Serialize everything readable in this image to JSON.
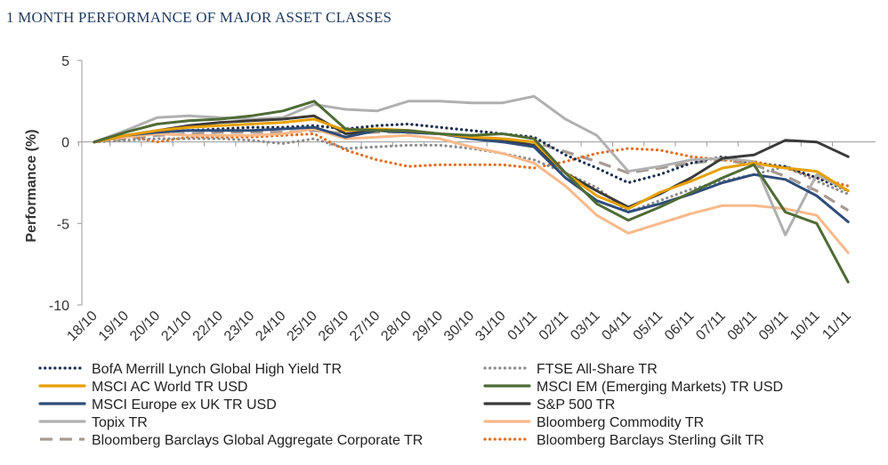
{
  "title": "1 MONTH PERFORMANCE OF MAJOR ASSET CLASSES",
  "chart_data": {
    "type": "line",
    "ylabel": "Performance (%)",
    "ylim": [
      -10,
      5
    ],
    "yticks": [
      "5",
      "0",
      "-5",
      "-10"
    ],
    "grid": false,
    "legend_position": "bottom",
    "x": [
      "18/10",
      "19/10",
      "20/10",
      "21/10",
      "22/10",
      "23/10",
      "24/10",
      "25/10",
      "26/10",
      "27/10",
      "28/10",
      "29/10",
      "30/10",
      "31/10",
      "01/11",
      "02/11",
      "03/11",
      "04/11",
      "05/11",
      "06/11",
      "07/11",
      "08/11",
      "09/11",
      "10/11",
      "11/11"
    ],
    "series": [
      {
        "name": "BofA Merrill Lynch Global High Yield TR",
        "color": "#1b2f4f",
        "style": "dotted",
        "values": [
          0,
          0.3,
          0.6,
          0.7,
          0.8,
          0.9,
          0.9,
          1.0,
          0.8,
          1.0,
          1.1,
          0.9,
          0.7,
          0.5,
          0.3,
          -0.8,
          -1.6,
          -2.5,
          -2.0,
          -1.3,
          -0.9,
          -1.3,
          -1.5,
          -2.2,
          -3.0
        ]
      },
      {
        "name": "FTSE All-Share TR",
        "color": "#8c8c8c",
        "style": "dotted",
        "values": [
          0,
          0.1,
          0.2,
          0.2,
          0.2,
          0.1,
          -0.1,
          0.2,
          -0.4,
          -0.3,
          -0.2,
          -0.2,
          -0.4,
          -0.7,
          -1.1,
          -1.9,
          -2.8,
          -4.3,
          -3.6,
          -2.9,
          -2.4,
          -2.0,
          -1.5,
          -2.4,
          -3.2
        ]
      },
      {
        "name": "MSCI AC World TR USD",
        "color": "#e8a000",
        "style": "solid",
        "values": [
          0,
          0.4,
          0.7,
          0.9,
          1.0,
          1.1,
          1.2,
          1.4,
          0.7,
          0.8,
          0.7,
          0.5,
          0.3,
          0.2,
          0.0,
          -1.9,
          -3.3,
          -4.1,
          -3.1,
          -2.4,
          -1.6,
          -1.3,
          -1.6,
          -1.8,
          -3.0
        ]
      },
      {
        "name": "MSCI EM (Emerging Markets) TR USD",
        "color": "#4e6b35",
        "style": "solid",
        "values": [
          0,
          0.6,
          1.1,
          1.3,
          1.4,
          1.6,
          1.9,
          2.5,
          0.8,
          0.7,
          0.7,
          0.5,
          0.4,
          0.5,
          0.2,
          -1.9,
          -3.8,
          -4.8,
          -4.0,
          -3.1,
          -2.2,
          -1.4,
          -4.3,
          -5.0,
          -8.6
        ]
      },
      {
        "name": "MSCI Europe ex UK TR USD",
        "color": "#2e4d7b",
        "style": "solid",
        "values": [
          0,
          0.4,
          0.6,
          0.7,
          0.7,
          0.7,
          0.8,
          0.9,
          0.3,
          0.7,
          0.6,
          0.5,
          0.2,
          0.0,
          -0.3,
          -2.2,
          -3.6,
          -4.3,
          -3.8,
          -3.2,
          -2.5,
          -2.0,
          -2.3,
          -3.3,
          -4.9
        ]
      },
      {
        "name": "S&P 500 TR",
        "color": "#3a3a3a",
        "style": "solid",
        "values": [
          0,
          0.4,
          0.7,
          1.0,
          1.2,
          1.3,
          1.4,
          1.6,
          0.5,
          0.7,
          0.6,
          0.5,
          0.3,
          0.1,
          -0.2,
          -1.9,
          -3.0,
          -4.0,
          -3.2,
          -2.2,
          -1.0,
          -0.8,
          0.1,
          0.0,
          -0.9
        ]
      },
      {
        "name": "Topix TR",
        "color": "#b0b0b0",
        "style": "solid",
        "values": [
          0,
          0.7,
          1.5,
          1.6,
          1.5,
          1.4,
          1.5,
          2.3,
          2.0,
          1.9,
          2.5,
          2.5,
          2.4,
          2.4,
          2.8,
          1.4,
          0.4,
          -1.8,
          -1.5,
          -1.1,
          -1.0,
          -1.2,
          -5.7,
          -2.0,
          -3.0
        ]
      },
      {
        "name": "Bloomberg Commodity TR",
        "color": "#f9b98a",
        "style": "solid",
        "values": [
          0,
          0.3,
          0.5,
          0.4,
          0.4,
          0.4,
          0.5,
          0.8,
          0.2,
          0.3,
          0.4,
          0.2,
          -0.3,
          -0.7,
          -1.3,
          -2.7,
          -4.5,
          -5.6,
          -5.0,
          -4.4,
          -3.9,
          -3.9,
          -4.1,
          -4.5,
          -6.8
        ]
      },
      {
        "name": "Bloomberg Barclays Global Aggregate Corporate TR",
        "color": "#a79b92",
        "style": "dashed",
        "values": [
          0,
          0.2,
          0.4,
          0.5,
          0.6,
          0.6,
          0.6,
          0.7,
          0.5,
          0.6,
          0.6,
          0.5,
          0.3,
          0.2,
          0.0,
          -0.6,
          -1.2,
          -1.9,
          -1.6,
          -1.3,
          -1.1,
          -1.4,
          -2.1,
          -3.0,
          -4.2
        ]
      },
      {
        "name": "Bloomberg Barclays Sterling Gilt TR",
        "color": "#e26d1c",
        "style": "dotted",
        "values": [
          0,
          0.4,
          0.0,
          0.3,
          0.3,
          0.3,
          0.4,
          0.5,
          -0.5,
          -1.1,
          -1.5,
          -1.4,
          -1.4,
          -1.4,
          -1.6,
          -1.2,
          -0.7,
          -0.4,
          -0.5,
          -0.9,
          -1.1,
          -1.2,
          -1.6,
          -2.2,
          -2.7
        ]
      }
    ]
  }
}
